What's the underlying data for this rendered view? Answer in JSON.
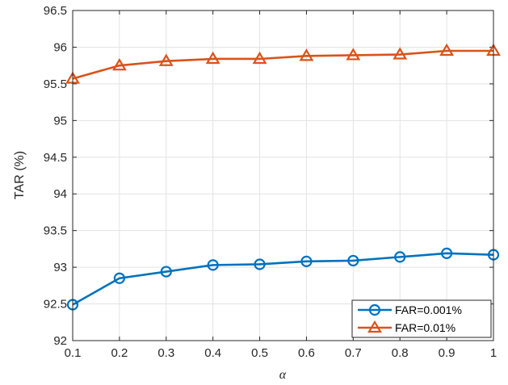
{
  "chart_data": {
    "type": "line",
    "title": "",
    "xlabel": "α",
    "ylabel": "TAR (%)",
    "x": [
      0.1,
      0.2,
      0.3,
      0.4,
      0.5,
      0.6,
      0.7,
      0.8,
      0.9,
      1.0
    ],
    "xlim": [
      0.1,
      1.0
    ],
    "ylim": [
      92,
      96.5
    ],
    "x_ticks": [
      "0.1",
      "0.2",
      "0.3",
      "0.4",
      "0.5",
      "0.6",
      "0.7",
      "0.8",
      "0.9",
      "1"
    ],
    "y_ticks": [
      "92",
      "92.5",
      "93",
      "93.5",
      "94",
      "94.5",
      "95",
      "95.5",
      "96",
      "96.5"
    ],
    "grid": true,
    "legend_position": "bottom-right",
    "series": [
      {
        "name": "FAR=0.001%",
        "marker": "circle",
        "color": "#0072BD",
        "values": [
          92.49,
          92.85,
          92.94,
          93.03,
          93.04,
          93.08,
          93.09,
          93.14,
          93.19,
          93.17
        ]
      },
      {
        "name": "FAR=0.01%",
        "marker": "triangle",
        "color": "#D95319",
        "values": [
          95.57,
          95.75,
          95.81,
          95.84,
          95.84,
          95.88,
          95.89,
          95.9,
          95.95,
          95.95
        ]
      }
    ]
  }
}
